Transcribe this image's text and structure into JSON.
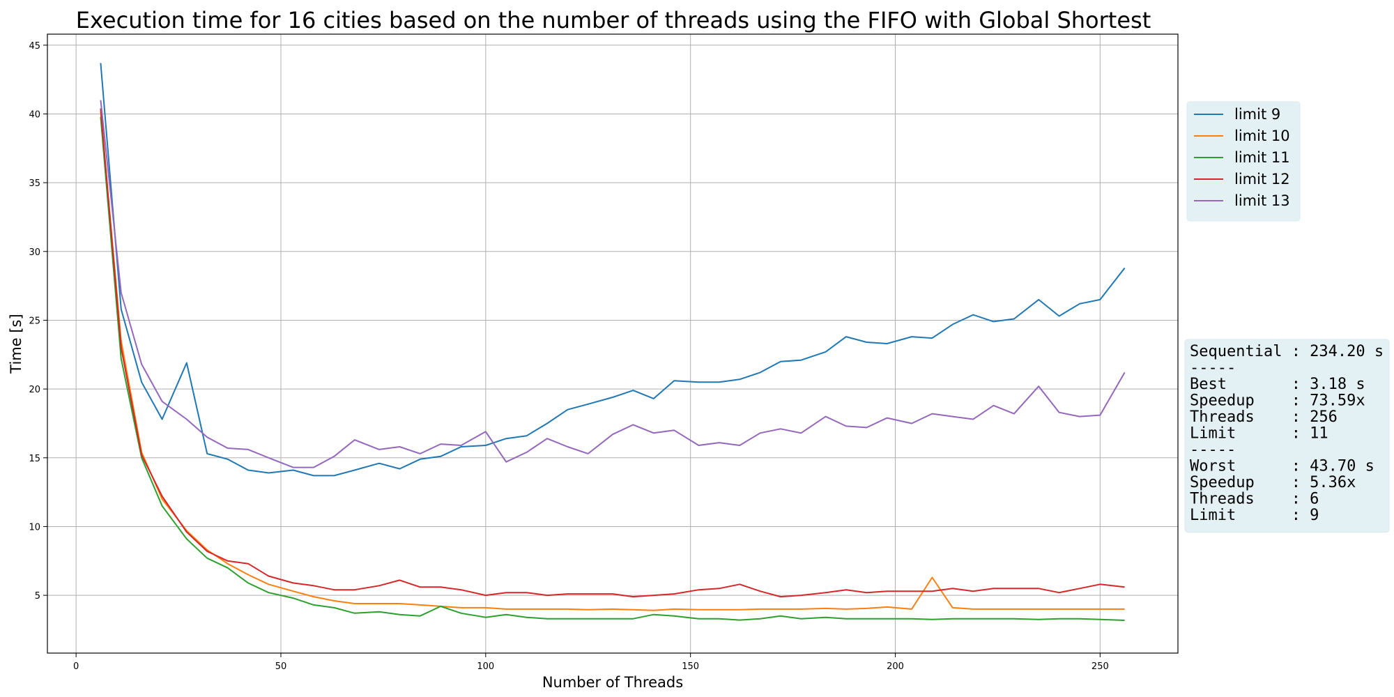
{
  "chart_data": {
    "type": "line",
    "title": "Execution time for 16 cities based on the number of threads using the FIFO with Global Shortest",
    "xlabel": "Number of Threads",
    "ylabel": "Time [s]",
    "xlim": [
      -7,
      269
    ],
    "ylim": [
      0.8,
      45.8
    ],
    "xticks": [
      0,
      50,
      100,
      150,
      200,
      250
    ],
    "yticks": [
      5,
      10,
      15,
      20,
      25,
      30,
      35,
      40,
      45
    ],
    "grid": true,
    "legend_position": "right",
    "x": [
      6,
      11,
      16,
      21,
      27,
      32,
      37,
      42,
      47,
      53,
      58,
      63,
      68,
      74,
      79,
      84,
      89,
      94,
      100,
      105,
      110,
      115,
      120,
      125,
      131,
      136,
      141,
      146,
      152,
      157,
      162,
      167,
      172,
      177,
      183,
      188,
      193,
      198,
      204,
      209,
      214,
      219,
      224,
      229,
      235,
      240,
      245,
      250,
      256
    ],
    "series": [
      {
        "name": "limit 9",
        "color": "#1f77b4",
        "values": [
          43.7,
          25.8,
          20.5,
          17.8,
          21.9,
          15.3,
          14.9,
          14.1,
          13.9,
          14.1,
          13.7,
          13.7,
          14.1,
          14.6,
          14.2,
          14.9,
          15.1,
          15.8,
          15.9,
          16.4,
          16.6,
          17.5,
          18.5,
          18.9,
          19.4,
          19.9,
          19.3,
          20.6,
          20.5,
          20.5,
          20.7,
          21.2,
          22.0,
          22.1,
          22.7,
          23.8,
          23.4,
          23.3,
          23.8,
          23.7,
          24.7,
          25.4,
          24.9,
          25.1,
          26.5,
          25.3,
          26.2,
          26.5,
          28.8
        ]
      },
      {
        "name": "limit 10",
        "color": "#ff7f0e",
        "values": [
          40.2,
          23.5,
          15.4,
          12.0,
          9.7,
          8.3,
          7.3,
          6.5,
          5.8,
          5.3,
          4.9,
          4.6,
          4.4,
          4.4,
          4.4,
          4.3,
          4.2,
          4.1,
          4.1,
          4.0,
          4.0,
          4.0,
          4.0,
          3.95,
          4.0,
          3.95,
          3.9,
          4.0,
          3.95,
          3.95,
          3.95,
          4.0,
          4.0,
          4.0,
          4.05,
          4.0,
          4.05,
          4.15,
          4.0,
          6.3,
          4.1,
          4.0,
          4.0,
          4.0,
          4.0,
          4.0,
          4.0,
          4.0,
          4.0
        ]
      },
      {
        "name": "limit 11",
        "color": "#2ca02c",
        "values": [
          39.8,
          22.2,
          15.0,
          11.5,
          9.1,
          7.7,
          7.0,
          5.9,
          5.2,
          4.8,
          4.3,
          4.1,
          3.7,
          3.8,
          3.6,
          3.5,
          4.2,
          3.7,
          3.4,
          3.6,
          3.4,
          3.3,
          3.3,
          3.3,
          3.3,
          3.3,
          3.6,
          3.5,
          3.3,
          3.3,
          3.2,
          3.3,
          3.5,
          3.3,
          3.4,
          3.3,
          3.3,
          3.3,
          3.3,
          3.25,
          3.3,
          3.3,
          3.3,
          3.3,
          3.25,
          3.3,
          3.3,
          3.25,
          3.18
        ]
      },
      {
        "name": "limit 12",
        "color": "#d62728",
        "values": [
          40.4,
          23.0,
          15.2,
          12.2,
          9.6,
          8.2,
          7.5,
          7.3,
          6.4,
          5.9,
          5.7,
          5.4,
          5.4,
          5.7,
          6.1,
          5.6,
          5.6,
          5.4,
          5.0,
          5.2,
          5.2,
          5.0,
          5.1,
          5.1,
          5.1,
          4.9,
          5.0,
          5.1,
          5.4,
          5.5,
          5.8,
          5.3,
          4.9,
          5.0,
          5.2,
          5.4,
          5.2,
          5.3,
          5.3,
          5.3,
          5.5,
          5.3,
          5.5,
          5.5,
          5.5,
          5.2,
          5.5,
          5.8,
          5.6
        ]
      },
      {
        "name": "limit 13",
        "color": "#9467bd",
        "values": [
          41.0,
          27.0,
          21.8,
          19.1,
          17.8,
          16.5,
          15.7,
          15.6,
          15.0,
          14.3,
          14.3,
          15.1,
          16.3,
          15.6,
          15.8,
          15.3,
          16.0,
          15.9,
          16.9,
          14.7,
          15.4,
          16.4,
          15.8,
          15.3,
          16.7,
          17.4,
          16.8,
          17.0,
          15.9,
          16.1,
          15.9,
          16.8,
          17.1,
          16.8,
          18.0,
          17.3,
          17.2,
          17.9,
          17.5,
          18.2,
          18.0,
          17.8,
          18.8,
          18.2,
          20.2,
          18.3,
          18.0,
          18.1,
          21.2
        ]
      }
    ],
    "stats_lines": [
      "Sequential : 234.20 s",
      "-----",
      "Best       : 3.18 s",
      "Speedup    : 73.59x",
      "Threads    : 256",
      "Limit      : 11",
      "-----",
      "Worst      : 43.70 s",
      "Speedup    : 5.36x",
      "Threads    : 6",
      "Limit      : 9"
    ],
    "legend_bg": "#e4f1f4"
  }
}
